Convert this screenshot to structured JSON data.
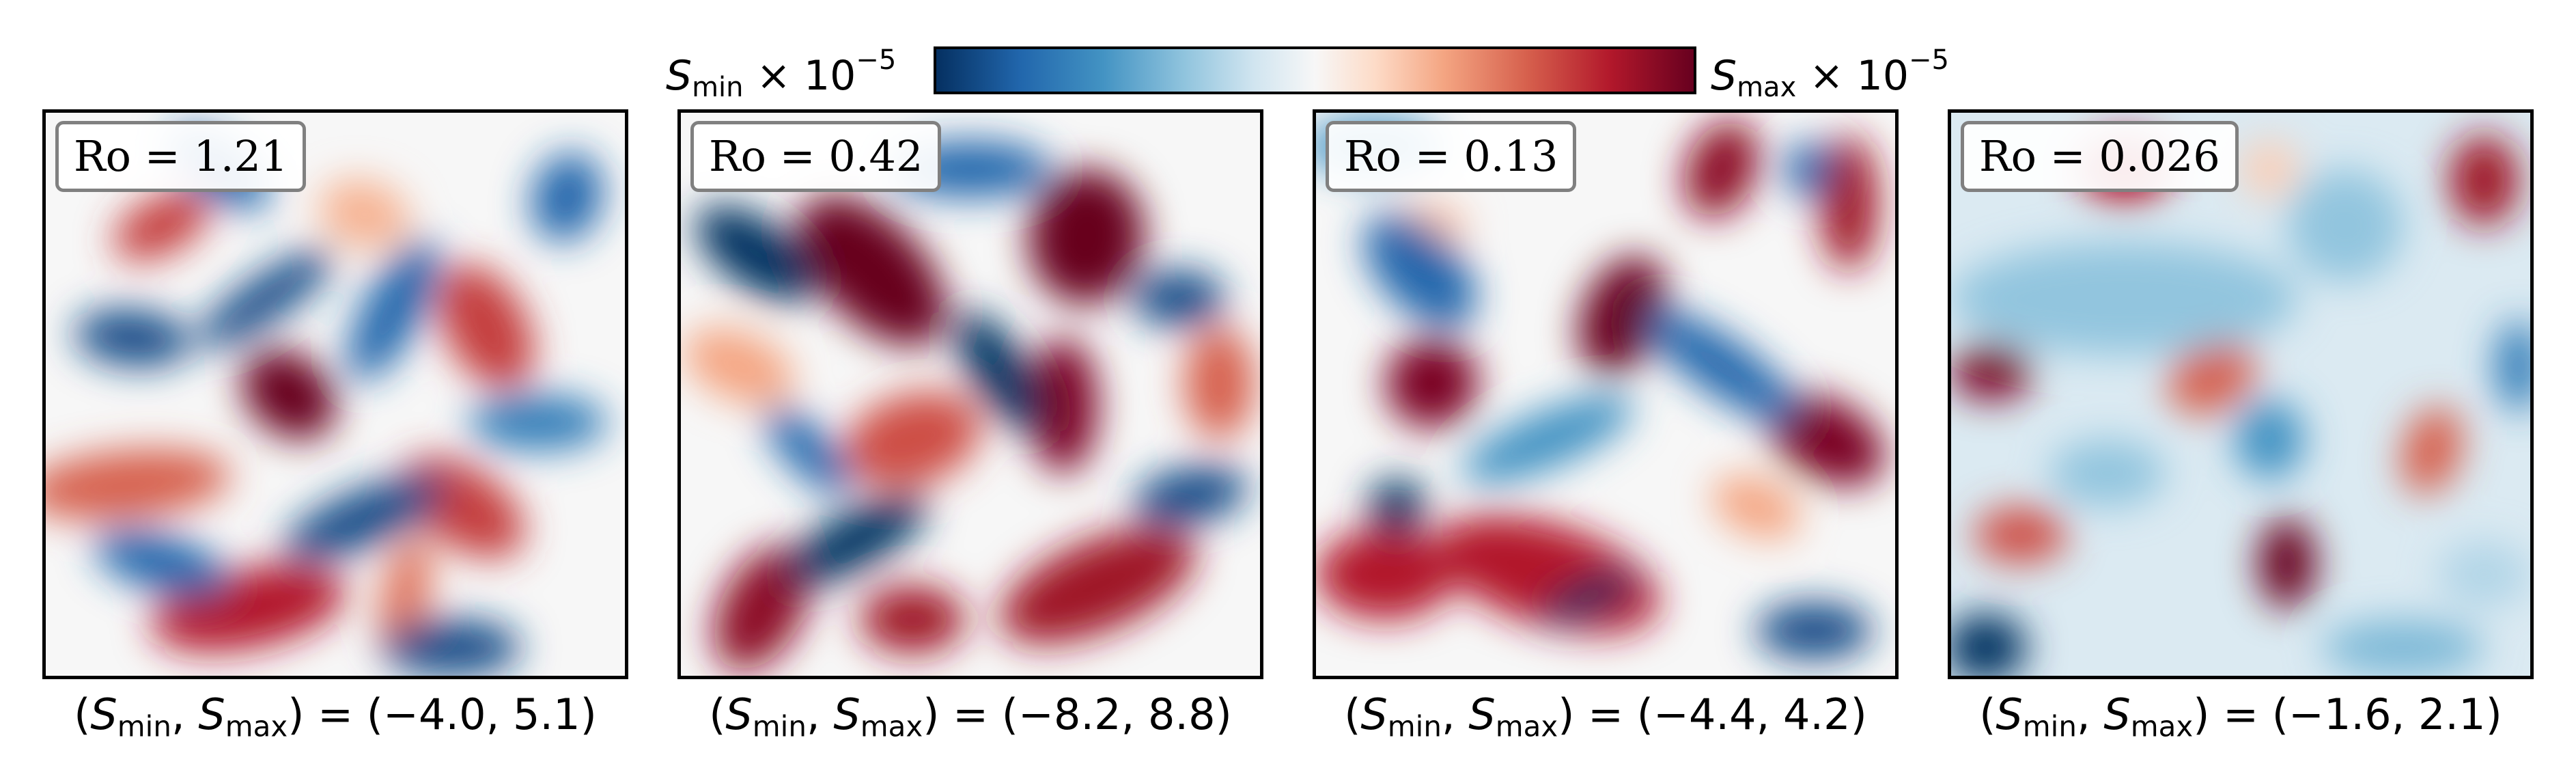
{
  "colorbar": {
    "left_label": {
      "symbol": "S",
      "sub": "min",
      "times": " × 10",
      "sup": "−5"
    },
    "right_label": {
      "symbol": "S",
      "sub": "max",
      "times": " × 10",
      "sup": "−5"
    },
    "colormap": [
      "#053061",
      "#2166ac",
      "#4393c3",
      "#92c5de",
      "#d1e5f0",
      "#f7f7f7",
      "#fddbc7",
      "#f4a582",
      "#d6604d",
      "#b2182b",
      "#67001f"
    ]
  },
  "range_label_parts": {
    "open": "(",
    "s": "S",
    "min": "min",
    "comma": ", ",
    "max": "max",
    "close_eq": ") = ("
  },
  "chart_data": [
    {
      "type": "heatmap",
      "ro_label": "Ro = 1.21",
      "smin": "−4.0",
      "smax": "5.1",
      "close": ")",
      "blobs": [
        [
          0.2,
          0.2,
          0.09,
          0.05,
          -0.5,
          0.7
        ],
        [
          0.42,
          0.5,
          0.09,
          0.07,
          0.7,
          1.0
        ],
        [
          0.14,
          0.66,
          0.18,
          0.06,
          -0.1,
          0.6
        ],
        [
          0.35,
          0.88,
          0.17,
          0.07,
          -0.2,
          0.8
        ],
        [
          0.76,
          0.38,
          0.07,
          0.12,
          -0.5,
          0.7
        ],
        [
          0.72,
          0.7,
          0.12,
          0.07,
          0.6,
          0.7
        ],
        [
          0.62,
          0.86,
          0.04,
          0.11,
          0.2,
          0.55
        ],
        [
          0.55,
          0.18,
          0.08,
          0.06,
          0.3,
          0.35
        ],
        [
          0.15,
          0.4,
          0.1,
          0.05,
          0.1,
          -0.9
        ],
        [
          0.38,
          0.33,
          0.14,
          0.04,
          -0.6,
          -0.9
        ],
        [
          0.6,
          0.35,
          0.05,
          0.14,
          0.5,
          -0.8
        ],
        [
          0.55,
          0.72,
          0.15,
          0.05,
          -0.4,
          -0.9
        ],
        [
          0.85,
          0.55,
          0.12,
          0.05,
          0.0,
          -0.7
        ],
        [
          0.2,
          0.8,
          0.12,
          0.05,
          0.3,
          -0.8
        ],
        [
          0.3,
          0.1,
          0.1,
          0.05,
          0.6,
          -0.8
        ],
        [
          0.7,
          0.95,
          0.12,
          0.05,
          0.0,
          -0.9
        ],
        [
          0.9,
          0.15,
          0.06,
          0.08,
          0.3,
          -0.8
        ]
      ]
    },
    {
      "type": "heatmap",
      "ro_label": "Ro = 0.42",
      "smin": "−8.2",
      "smax": "8.8",
      "close": ")",
      "blobs": [
        [
          0.33,
          0.28,
          0.16,
          0.09,
          0.8,
          1.0
        ],
        [
          0.7,
          0.22,
          0.1,
          0.12,
          0.1,
          1.0
        ],
        [
          0.66,
          0.52,
          0.06,
          0.12,
          0.0,
          0.95
        ],
        [
          0.14,
          0.88,
          0.07,
          0.12,
          0.5,
          0.9
        ],
        [
          0.72,
          0.84,
          0.18,
          0.08,
          -0.4,
          0.85
        ],
        [
          0.4,
          0.9,
          0.09,
          0.06,
          0.0,
          0.85
        ],
        [
          0.4,
          0.58,
          0.12,
          0.08,
          -0.3,
          0.65
        ],
        [
          0.1,
          0.45,
          0.1,
          0.06,
          0.4,
          0.4
        ],
        [
          0.93,
          0.48,
          0.06,
          0.1,
          0.0,
          0.6
        ],
        [
          0.13,
          0.25,
          0.12,
          0.06,
          0.6,
          -1.0
        ],
        [
          0.5,
          0.1,
          0.14,
          0.05,
          0.0,
          -0.8
        ],
        [
          0.55,
          0.46,
          0.12,
          0.05,
          1.0,
          -1.0
        ],
        [
          0.3,
          0.76,
          0.14,
          0.05,
          -0.5,
          -1.0
        ],
        [
          0.86,
          0.33,
          0.08,
          0.05,
          0.0,
          -0.9
        ],
        [
          0.88,
          0.68,
          0.1,
          0.05,
          -0.2,
          -0.9
        ],
        [
          0.22,
          0.6,
          0.1,
          0.04,
          0.8,
          -0.8
        ]
      ]
    },
    {
      "type": "heatmap",
      "ro_label": "Ro = 0.13",
      "smin": "−4.4",
      "smax": "4.2",
      "close": ")",
      "blobs": [
        [
          0.53,
          0.36,
          0.07,
          0.11,
          0.4,
          1.0
        ],
        [
          0.7,
          0.1,
          0.06,
          0.09,
          0.4,
          0.9
        ],
        [
          0.92,
          0.16,
          0.05,
          0.12,
          0.0,
          0.85
        ],
        [
          0.88,
          0.58,
          0.11,
          0.07,
          0.5,
          0.95
        ],
        [
          0.2,
          0.48,
          0.08,
          0.08,
          -0.3,
          0.95
        ],
        [
          0.4,
          0.82,
          0.2,
          0.09,
          0.3,
          0.8
        ],
        [
          0.12,
          0.82,
          0.12,
          0.08,
          0.0,
          0.8
        ],
        [
          0.2,
          0.2,
          0.06,
          0.04,
          0.0,
          0.3
        ],
        [
          0.76,
          0.7,
          0.08,
          0.05,
          0.4,
          0.4
        ],
        [
          0.14,
          0.7,
          0.05,
          0.05,
          0.0,
          -1.0
        ],
        [
          0.47,
          0.86,
          0.09,
          0.03,
          -0.4,
          -1.0
        ],
        [
          0.85,
          0.1,
          0.04,
          0.05,
          0.0,
          -0.8
        ],
        [
          0.18,
          0.28,
          0.12,
          0.07,
          0.8,
          -0.8
        ],
        [
          0.7,
          0.45,
          0.16,
          0.05,
          0.6,
          -0.8
        ],
        [
          0.4,
          0.58,
          0.16,
          0.05,
          -0.4,
          -0.6
        ],
        [
          0.86,
          0.92,
          0.1,
          0.05,
          0.0,
          -0.9
        ],
        [
          0.1,
          0.06,
          0.12,
          0.05,
          0.0,
          -0.6
        ]
      ]
    },
    {
      "type": "heatmap",
      "ro_label": "Ro = 0.026",
      "smin": "−1.6",
      "smax": "2.1",
      "close": ")",
      "blobs": [
        [
          0.3,
          0.1,
          0.08,
          0.06,
          0.0,
          0.8
        ],
        [
          0.92,
          0.12,
          0.06,
          0.08,
          0.0,
          0.85
        ],
        [
          0.07,
          0.46,
          0.07,
          0.05,
          0.0,
          0.95
        ],
        [
          0.45,
          0.47,
          0.08,
          0.06,
          -0.5,
          0.6
        ],
        [
          0.83,
          0.6,
          0.05,
          0.08,
          0.3,
          0.6
        ],
        [
          0.12,
          0.75,
          0.08,
          0.05,
          0.0,
          0.65
        ],
        [
          0.58,
          0.8,
          0.05,
          0.08,
          0.0,
          1.0
        ],
        [
          0.55,
          0.1,
          0.05,
          0.05,
          0.0,
          0.25
        ],
        [
          0.3,
          0.33,
          0.3,
          0.1,
          0.0,
          -0.4
        ],
        [
          0.68,
          0.2,
          0.1,
          0.1,
          0.0,
          -0.4
        ],
        [
          0.55,
          0.58,
          0.06,
          0.07,
          0.0,
          -0.6
        ],
        [
          0.06,
          0.95,
          0.07,
          0.06,
          0.0,
          -1.0
        ],
        [
          0.27,
          0.64,
          0.1,
          0.06,
          0.0,
          -0.4
        ],
        [
          0.92,
          0.82,
          0.08,
          0.06,
          0.0,
          -0.3
        ],
        [
          0.98,
          0.45,
          0.04,
          0.08,
          0.0,
          -0.7
        ],
        [
          0.78,
          0.95,
          0.14,
          0.05,
          0.0,
          -0.45
        ]
      ]
    }
  ]
}
